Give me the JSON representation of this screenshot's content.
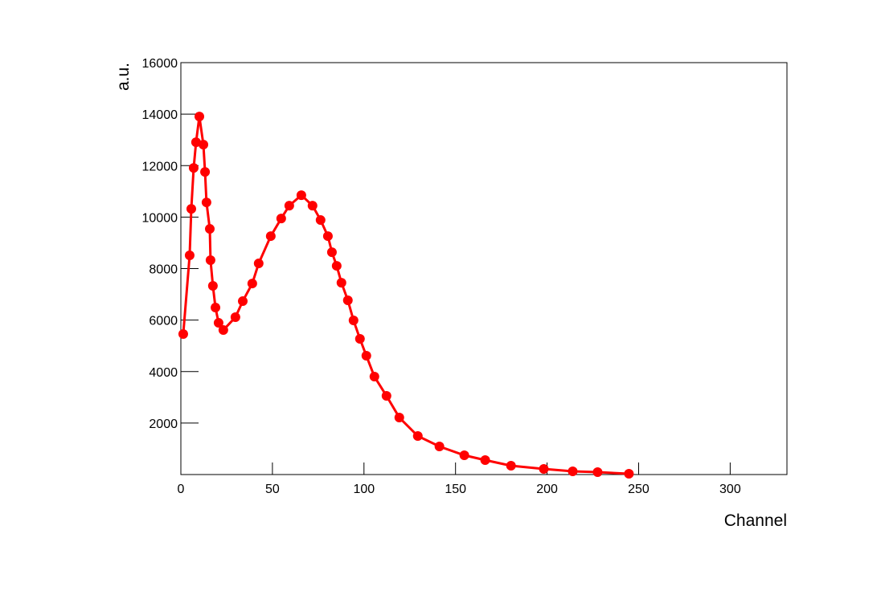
{
  "chart_data": {
    "type": "line",
    "xlabel": "Channel",
    "ylabel": "a.u.",
    "xlim": [
      0,
      331
    ],
    "ylim": [
      0,
      16000
    ],
    "xticks": [
      0,
      50,
      100,
      150,
      200,
      250,
      300
    ],
    "yticks": [
      2000,
      4000,
      6000,
      8000,
      10000,
      12000,
      14000,
      16000
    ],
    "series": [
      {
        "color": "#ff0000",
        "x": [
          1.3,
          4.8,
          5.7,
          7.0,
          8.3,
          10.1,
          12.3,
          13.2,
          14.0,
          15.8,
          16.2,
          17.5,
          18.9,
          20.6,
          23.2,
          29.8,
          33.8,
          39.0,
          42.5,
          49.1,
          54.8,
          59.2,
          65.8,
          71.9,
          76.3,
          80.3,
          82.5,
          85.1,
          87.7,
          91.2,
          94.3,
          97.8,
          101.3,
          105.7,
          112.3,
          119.3,
          129.4,
          141.2,
          154.8,
          166.2,
          180.3,
          198.2,
          214.0,
          227.6,
          244.7
        ],
        "values": [
          5457,
          8513,
          10321,
          11912,
          12909,
          13907,
          12816,
          11756,
          10571,
          9542,
          8326,
          7328,
          6486,
          5893,
          5613,
          6112,
          6735,
          7421,
          8201,
          9261,
          9947,
          10446,
          10851,
          10446,
          9885,
          9261,
          8637,
          8107,
          7452,
          6767,
          5987,
          5270,
          4615,
          3804,
          3056,
          2214,
          1497,
          1091,
          748,
          561,
          343,
          218,
          125,
          94,
          31
        ]
      }
    ]
  }
}
